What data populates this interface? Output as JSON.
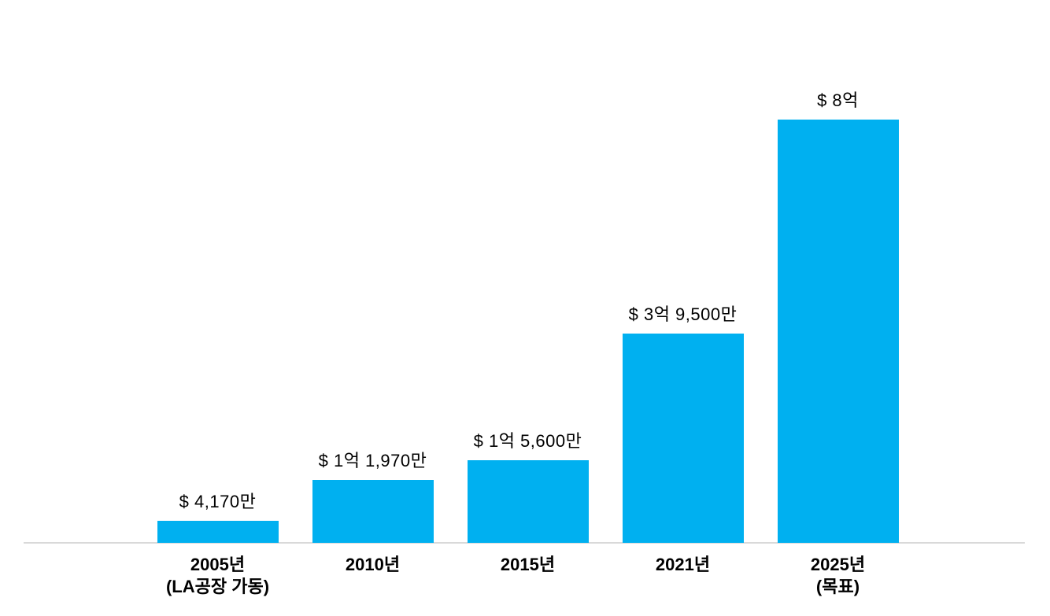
{
  "chart_data": {
    "type": "bar",
    "title": "",
    "xlabel": "",
    "ylabel": "",
    "unit": "USD",
    "ylim": [
      0,
      800
    ],
    "grid": false,
    "legend": false,
    "bar_color": "#00b0f0",
    "axis_line_color": "#d9d9d9",
    "categories": [
      "2005년",
      "2010년",
      "2015년",
      "2021년",
      "2025년"
    ],
    "sub_labels": [
      "(LA공장 가동)",
      "",
      "",
      "",
      "(목표)"
    ],
    "values": [
      41.7,
      119.7,
      156,
      395,
      800
    ],
    "value_labels": [
      "$ 4,170만",
      "$ 1억 1,970만",
      "$ 1억 5,600만",
      "$ 3억 9,500만",
      "$ 8억"
    ]
  }
}
